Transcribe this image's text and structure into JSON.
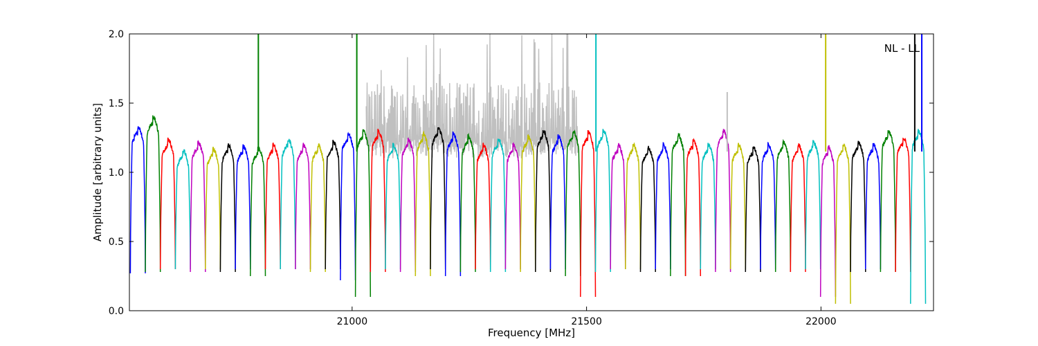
{
  "chart_data": {
    "type": "line",
    "title": "",
    "xlabel": "Frequency [MHz]",
    "ylabel": "Amplitude [arbitrary units]",
    "xlim": [
      20525,
      22240
    ],
    "ylim": [
      0.0,
      2.0
    ],
    "xticks": [
      21000,
      21500,
      22000
    ],
    "yticks": [
      0.0,
      0.5,
      1.0,
      1.5,
      2.0
    ],
    "xtick_labels": [
      "21000",
      "21500",
      "22000"
    ],
    "ytick_labels": [
      "0.0",
      "0.5",
      "1.0",
      "1.5",
      "2.0"
    ],
    "grid": false,
    "annotation": "NL - LL",
    "annotation_position": "top-right",
    "colors": [
      "#0000ff",
      "#008000",
      "#ff0000",
      "#00bfbf",
      "#bf00bf",
      "#bfbf00",
      "#000000"
    ],
    "background_color": "#c0c0c0",
    "channel_start_mhz": 20527,
    "channel_width_mhz": 32,
    "channel_count": 53,
    "channel_top_levels": [
      1.33,
      1.4,
      1.24,
      1.16,
      1.22,
      1.17,
      1.2,
      1.19,
      1.18,
      1.2,
      1.24,
      1.2,
      1.2,
      1.22,
      1.28,
      1.3,
      1.3,
      1.2,
      1.24,
      1.28,
      1.32,
      1.28,
      1.26,
      1.2,
      1.24,
      1.2,
      1.26,
      1.3,
      1.26,
      1.3,
      1.29,
      1.3,
      1.2,
      1.2,
      1.18,
      1.2,
      1.27,
      1.23,
      1.2,
      1.3,
      1.2,
      1.18,
      1.2,
      1.22,
      1.2,
      1.22,
      1.18,
      1.2,
      1.22,
      1.2,
      1.3,
      1.25,
      1.3
    ],
    "channel_dip_levels": [
      0.27,
      0.28,
      0.3,
      0.3,
      0.28,
      0.3,
      0.28,
      0.3,
      0.25,
      0.3,
      0.3,
      0.3,
      0.28,
      0.3,
      0.22,
      0.1,
      0.28,
      0.3,
      0.28,
      0.25,
      0.3,
      0.25,
      0.28,
      0.3,
      0.28,
      0.3,
      0.28,
      0.28,
      0.3,
      0.25,
      0.1,
      0.28,
      0.3,
      0.3,
      0.28,
      0.3,
      0.25,
      0.25,
      0.3,
      0.28,
      0.3,
      0.28,
      0.3,
      0.28,
      0.28,
      0.3,
      0.1,
      0.05,
      0.28,
      0.3,
      0.28,
      0.28,
      0.05
    ],
    "rfi_spikes": [
      {
        "x": 20800,
        "y": 2.0,
        "color": "#008000"
      },
      {
        "x": 21010,
        "y": 2.0,
        "color": "#008000"
      },
      {
        "x": 21520,
        "y": 2.0,
        "color": "#00bfbf"
      },
      {
        "x": 21800,
        "y": 1.58,
        "color": "#c0c0c0"
      },
      {
        "x": 22010,
        "y": 2.0,
        "color": "#bfbf00"
      },
      {
        "x": 22200,
        "y": 2.0,
        "color": "#000000"
      },
      {
        "x": 22215,
        "y": 2.0,
        "color": "#0000ff"
      }
    ],
    "rfi_band": {
      "x_start": 21030,
      "x_end": 21480,
      "level": 1.65,
      "color": "#c0c0c0"
    }
  }
}
